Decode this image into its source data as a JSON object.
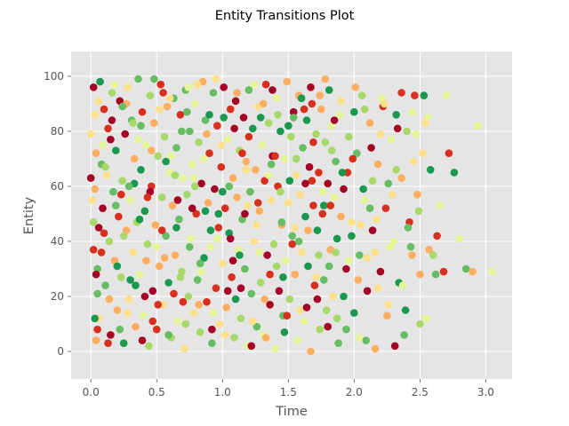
{
  "chart_data": {
    "type": "scatter",
    "title": "Entity Transitions Plot",
    "xlabel": "Time",
    "ylabel": "Entity",
    "xlim": [
      -0.15,
      3.2
    ],
    "ylim": [
      -10,
      109
    ],
    "xticks": [
      0.0,
      0.5,
      1.0,
      1.5,
      2.0,
      2.5,
      3.0
    ],
    "xtick_labels": [
      "0.0",
      "0.5",
      "1.0",
      "1.5",
      "2.0",
      "2.5",
      "3.0"
    ],
    "yticks": [
      0,
      20,
      40,
      60,
      80,
      100
    ],
    "ytick_labels": [
      "0",
      "20",
      "40",
      "60",
      "80",
      "100"
    ],
    "grid": true,
    "style": "ggplot",
    "colors": [
      "#a50026",
      "#d7301f",
      "#fdae61",
      "#fee08b",
      "#e6f598",
      "#a6d96a",
      "#66bd63",
      "#1a9850"
    ],
    "background_color": "#e5e5e5",
    "points": [
      [
        0.02,
        96
      ],
      [
        0.03,
        86
      ],
      [
        0.04,
        72
      ],
      [
        0.03,
        59
      ],
      [
        0.02,
        37
      ],
      [
        0.05,
        21
      ],
      [
        0.04,
        4
      ],
      [
        0.06,
        45
      ],
      [
        0.05,
        30
      ],
      [
        0.07,
        98
      ],
      [
        0.08,
        68
      ],
      [
        0.06,
        12
      ],
      [
        0.09,
        52
      ],
      [
        0.1,
        88
      ],
      [
        0.11,
        24
      ],
      [
        0.12,
        64
      ],
      [
        0.13,
        81
      ],
      [
        0.14,
        40
      ],
      [
        0.15,
        6
      ],
      [
        0.16,
        94
      ],
      [
        0.17,
        58
      ],
      [
        0.18,
        33
      ],
      [
        0.19,
        73
      ],
      [
        0.2,
        15
      ],
      [
        0.21,
        49
      ],
      [
        0.22,
        91
      ],
      [
        0.23,
        27
      ],
      [
        0.24,
        62
      ],
      [
        0.25,
        3
      ],
      [
        0.26,
        79
      ],
      [
        0.27,
        44
      ],
      [
        0.28,
        96
      ],
      [
        0.29,
        19
      ],
      [
        0.3,
        55
      ],
      [
        0.31,
        84
      ],
      [
        0.32,
        36
      ],
      [
        0.33,
        70
      ],
      [
        0.34,
        9
      ],
      [
        0.35,
        47
      ],
      [
        0.36,
        99
      ],
      [
        0.37,
        28
      ],
      [
        0.38,
        66
      ],
      [
        0.39,
        87
      ],
      [
        0.4,
        13
      ],
      [
        0.41,
        51
      ],
      [
        0.42,
        75
      ],
      [
        0.43,
        39
      ],
      [
        0.44,
        2
      ],
      [
        0.45,
        93
      ],
      [
        0.46,
        60
      ],
      [
        0.47,
        22
      ],
      [
        0.48,
        83
      ],
      [
        0.49,
        46
      ],
      [
        0.5,
        8
      ],
      [
        0.51,
        71
      ],
      [
        0.52,
        31
      ],
      [
        0.53,
        97
      ],
      [
        0.54,
        56
      ],
      [
        0.55,
        17
      ],
      [
        0.56,
        78
      ],
      [
        0.57,
        42
      ],
      [
        0.58,
        89
      ],
      [
        0.59,
        25
      ],
      [
        0.6,
        65
      ],
      [
        0.61,
        5
      ],
      [
        0.62,
        53
      ],
      [
        0.63,
        92
      ],
      [
        0.64,
        35
      ],
      [
        0.65,
        74
      ],
      [
        0.66,
        11
      ],
      [
        0.67,
        48
      ],
      [
        0.68,
        86
      ],
      [
        0.69,
        29
      ],
      [
        0.7,
        63
      ],
      [
        0.71,
        1
      ],
      [
        0.72,
        95
      ],
      [
        0.73,
        57
      ],
      [
        0.74,
        20
      ],
      [
        0.75,
        80
      ],
      [
        0.76,
        41
      ],
      [
        0.77,
        68
      ],
      [
        0.78,
        14
      ],
      [
        0.79,
        90
      ],
      [
        0.8,
        50
      ],
      [
        0.81,
        26
      ],
      [
        0.82,
        76
      ],
      [
        0.83,
        7
      ],
      [
        0.84,
        61
      ],
      [
        0.85,
        98
      ],
      [
        0.86,
        34
      ],
      [
        0.87,
        84
      ],
      [
        0.88,
        18
      ],
      [
        0.89,
        54
      ],
      [
        0.9,
        72
      ],
      [
        0.91,
        38
      ],
      [
        0.92,
        3
      ],
      [
        0.93,
        94
      ],
      [
        0.94,
        59
      ],
      [
        0.95,
        23
      ],
      [
        0.96,
        82
      ],
      [
        0.97,
        45
      ],
      [
        0.98,
        10
      ],
      [
        0.99,
        67
      ],
      [
        1.0,
        32
      ],
      [
        1.01,
        96
      ],
      [
        1.02,
        52
      ],
      [
        1.03,
        16
      ],
      [
        1.04,
        77
      ],
      [
        1.05,
        43
      ],
      [
        1.06,
        88
      ],
      [
        1.07,
        27
      ],
      [
        1.08,
        63
      ],
      [
        1.09,
        5
      ],
      [
        1.1,
        91
      ],
      [
        1.11,
        56
      ],
      [
        1.12,
        37
      ],
      [
        1.13,
        73
      ],
      [
        1.14,
        12
      ],
      [
        1.15,
        48
      ],
      [
        1.16,
        85
      ],
      [
        1.17,
        30
      ],
      [
        1.18,
        69
      ],
      [
        1.19,
        2
      ],
      [
        1.2,
        95
      ],
      [
        1.21,
        58
      ],
      [
        1.22,
        21
      ],
      [
        1.23,
        81
      ],
      [
        1.24,
        40
      ],
      [
        1.25,
        66
      ],
      [
        1.26,
        9
      ],
      [
        1.27,
        89
      ],
      [
        1.28,
        51
      ],
      [
        1.29,
        25
      ],
      [
        1.3,
        75
      ],
      [
        1.31,
        6
      ],
      [
        1.32,
        62
      ],
      [
        1.33,
        97
      ],
      [
        1.34,
        35
      ],
      [
        1.35,
        83
      ],
      [
        1.36,
        17
      ],
      [
        1.37,
        55
      ],
      [
        1.38,
        71
      ],
      [
        1.39,
        39
      ],
      [
        1.4,
        1
      ],
      [
        1.41,
        92
      ],
      [
        1.42,
        60
      ],
      [
        1.43,
        22
      ],
      [
        1.44,
        80
      ],
      [
        1.45,
        46
      ],
      [
        1.46,
        13
      ],
      [
        1.47,
        70
      ],
      [
        1.48,
        33
      ],
      [
        1.49,
        98
      ],
      [
        1.5,
        54
      ],
      [
        1.51,
        19
      ],
      [
        1.52,
        78
      ],
      [
        1.53,
        42
      ],
      [
        1.54,
        87
      ],
      [
        1.55,
        28
      ],
      [
        1.56,
        64
      ],
      [
        1.57,
        4
      ],
      [
        1.58,
        93
      ],
      [
        1.59,
        57
      ],
      [
        1.6,
        36
      ],
      [
        1.61,
        74
      ],
      [
        1.62,
        11
      ],
      [
        1.63,
        49
      ],
      [
        1.64,
        84
      ],
      [
        1.65,
        31
      ],
      [
        1.66,
        67
      ],
      [
        1.67,
        0
      ],
      [
        1.68,
        90
      ],
      [
        1.69,
        53
      ],
      [
        1.7,
        24
      ],
      [
        1.71,
        79
      ],
      [
        1.72,
        44
      ],
      [
        1.73,
        65
      ],
      [
        1.74,
        8
      ],
      [
        1.75,
        88
      ],
      [
        1.76,
        50
      ],
      [
        1.77,
        26
      ],
      [
        1.78,
        76
      ],
      [
        1.79,
        15
      ],
      [
        1.8,
        61
      ],
      [
        1.81,
        95
      ],
      [
        1.82,
        37
      ],
      [
        1.83,
        82
      ],
      [
        1.84,
        20
      ],
      [
        1.85,
        56
      ],
      [
        1.86,
        69
      ],
      [
        1.87,
        41
      ],
      [
        1.88,
        3
      ],
      [
        1.9,
        91
      ],
      [
        1.92,
        59
      ],
      [
        1.94,
        30
      ],
      [
        1.96,
        78
      ],
      [
        1.98,
        47
      ],
      [
        2.0,
        14
      ],
      [
        2.02,
        72
      ],
      [
        2.04,
        35
      ],
      [
        2.06,
        93
      ],
      [
        2.08,
        55
      ],
      [
        2.1,
        22
      ],
      [
        2.12,
        83
      ],
      [
        2.14,
        44
      ],
      [
        2.16,
        1
      ],
      [
        2.18,
        68
      ],
      [
        2.2,
        29
      ],
      [
        2.22,
        89
      ],
      [
        2.24,
        52
      ],
      [
        2.26,
        17
      ],
      [
        2.28,
        77
      ],
      [
        2.3,
        40
      ],
      [
        2.32,
        86
      ],
      [
        2.34,
        25
      ],
      [
        2.36,
        63
      ],
      [
        2.38,
        6
      ],
      [
        2.4,
        80
      ],
      [
        2.42,
        47
      ],
      [
        2.44,
        35
      ],
      [
        2.46,
        93
      ],
      [
        2.48,
        57
      ],
      [
        2.5,
        28
      ],
      [
        2.52,
        72
      ],
      [
        2.55,
        12
      ],
      [
        2.58,
        66
      ],
      [
        2.6,
        35
      ],
      [
        2.65,
        53
      ],
      [
        2.68,
        29
      ],
      [
        2.72,
        72
      ],
      [
        2.76,
        65
      ],
      [
        2.8,
        41
      ],
      [
        2.85,
        30
      ],
      [
        2.9,
        29
      ],
      [
        2.94,
        82
      ],
      [
        3.05,
        29
      ],
      [
        0.0,
        79
      ],
      [
        0.0,
        63
      ],
      [
        0.02,
        47
      ],
      [
        0.03,
        12
      ],
      [
        0.06,
        91
      ],
      [
        0.08,
        36
      ],
      [
        0.11,
        67
      ],
      [
        0.14,
        19
      ],
      [
        0.16,
        84
      ],
      [
        0.19,
        53
      ],
      [
        0.22,
        8
      ],
      [
        0.25,
        42
      ],
      [
        0.27,
        90
      ],
      [
        0.3,
        26
      ],
      [
        0.33,
        61
      ],
      [
        0.36,
        77
      ],
      [
        0.39,
        4
      ],
      [
        0.42,
        33
      ],
      [
        0.45,
        58
      ],
      [
        0.48,
        99
      ],
      [
        0.51,
        17
      ],
      [
        0.54,
        44
      ],
      [
        0.57,
        69
      ],
      [
        0.6,
        92
      ],
      [
        0.63,
        21
      ],
      [
        0.66,
        55
      ],
      [
        0.69,
        80
      ],
      [
        0.72,
        10
      ],
      [
        0.75,
        38
      ],
      [
        0.78,
        63
      ],
      [
        0.81,
        97
      ],
      [
        0.84,
        29
      ],
      [
        0.87,
        51
      ],
      [
        0.9,
        86
      ],
      [
        0.93,
        14
      ],
      [
        0.96,
        41
      ],
      [
        0.99,
        75
      ],
      [
        1.02,
        6
      ],
      [
        1.05,
        60
      ],
      [
        1.08,
        33
      ],
      [
        1.11,
        94
      ],
      [
        1.14,
        23
      ],
      [
        1.17,
        50
      ],
      [
        1.2,
        78
      ],
      [
        1.23,
        11
      ],
      [
        1.26,
        46
      ],
      [
        1.29,
        85
      ],
      [
        1.32,
        19
      ],
      [
        1.35,
        64
      ],
      [
        1.38,
        95
      ],
      [
        1.41,
        31
      ],
      [
        1.44,
        58
      ],
      [
        1.47,
        7
      ],
      [
        1.5,
        82
      ],
      [
        1.53,
        39
      ],
      [
        1.56,
        70
      ],
      [
        1.59,
        15
      ],
      [
        1.62,
        88
      ],
      [
        1.65,
        44
      ],
      [
        1.68,
        62
      ],
      [
        1.71,
        27
      ],
      [
        1.74,
        93
      ],
      [
        1.77,
        53
      ],
      [
        1.8,
        9
      ],
      [
        1.83,
        73
      ],
      [
        1.86,
        36
      ],
      [
        1.89,
        86
      ],
      [
        1.92,
        20
      ],
      [
        1.95,
        65
      ],
      [
        1.98,
        42
      ],
      [
        2.01,
        96
      ],
      [
        2.04,
        5
      ],
      [
        2.07,
        59
      ],
      [
        2.1,
        34
      ],
      [
        2.13,
        74
      ],
      [
        2.17,
        48
      ],
      [
        2.21,
        92
      ],
      [
        2.25,
        13
      ],
      [
        2.29,
        57
      ],
      [
        2.33,
        81
      ],
      [
        2.37,
        24
      ],
      [
        2.41,
        45
      ],
      [
        2.45,
        69
      ],
      [
        2.5,
        10
      ],
      [
        2.54,
        83
      ],
      [
        2.57,
        37
      ],
      [
        2.62,
        28
      ],
      [
        2.7,
        93
      ],
      [
        0.04,
        28
      ],
      [
        0.09,
        75
      ],
      [
        0.13,
        3
      ],
      [
        0.18,
        97
      ],
      [
        0.23,
        57
      ],
      [
        0.28,
        14
      ],
      [
        0.32,
        83
      ],
      [
        0.37,
        48
      ],
      [
        0.41,
        20
      ],
      [
        0.46,
        73
      ],
      [
        0.5,
        38
      ],
      [
        0.55,
        94
      ],
      [
        0.59,
        6
      ],
      [
        0.64,
        64
      ],
      [
        0.68,
        27
      ],
      [
        0.73,
        87
      ],
      [
        0.77,
        52
      ],
      [
        0.82,
        17
      ],
      [
        0.86,
        70
      ],
      [
        0.91,
        44
      ],
      [
        0.95,
        99
      ],
      [
        1.0,
        58
      ],
      [
        1.04,
        22
      ],
      [
        1.09,
        81
      ],
      [
        1.13,
        35
      ],
      [
        1.18,
        66
      ],
      [
        1.22,
        2
      ],
      [
        1.27,
        54
      ],
      [
        1.31,
        90
      ],
      [
        1.36,
        28
      ],
      [
        1.4,
        71
      ],
      [
        1.45,
        47
      ],
      [
        1.49,
        13
      ],
      [
        1.54,
        85
      ],
      [
        1.58,
        40
      ],
      [
        1.63,
        61
      ],
      [
        1.67,
        96
      ],
      [
        1.72,
        19
      ],
      [
        1.76,
        58
      ],
      [
        1.81,
        31
      ],
      [
        1.85,
        84
      ],
      [
        1.9,
        49
      ],
      [
        1.94,
        8
      ],
      [
        1.99,
        70
      ],
      [
        2.03,
        26
      ],
      [
        2.08,
        88
      ],
      [
        2.12,
        52
      ],
      [
        2.16,
        36
      ],
      [
        2.2,
        79
      ],
      [
        2.26,
        61
      ],
      [
        2.31,
        2
      ],
      [
        2.36,
        94
      ],
      [
        2.43,
        38
      ],
      [
        2.47,
        79
      ],
      [
        2.53,
        93
      ],
      [
        2.63,
        42
      ],
      [
        0.01,
        55
      ],
      [
        0.05,
        8
      ],
      [
        0.1,
        43
      ],
      [
        0.15,
        77
      ],
      [
        0.2,
        31
      ],
      [
        0.24,
        89
      ],
      [
        0.29,
        60
      ],
      [
        0.34,
        24
      ],
      [
        0.38,
        82
      ],
      [
        0.43,
        56
      ],
      [
        0.47,
        11
      ],
      [
        0.52,
        88
      ],
      [
        0.56,
        34
      ],
      [
        0.61,
        71
      ],
      [
        0.65,
        45
      ],
      [
        0.7,
        18
      ],
      [
        0.74,
        96
      ],
      [
        0.79,
        60
      ],
      [
        0.83,
        32
      ],
      [
        0.88,
        79
      ],
      [
        0.92,
        8
      ],
      [
        0.97,
        50
      ],
      [
        1.01,
        85
      ],
      [
        1.06,
        41
      ],
      [
        1.1,
        19
      ],
      [
        1.15,
        72
      ],
      [
        1.19,
        53
      ],
      [
        1.24,
        97
      ],
      [
        1.28,
        36
      ],
      [
        1.33,
        5
      ],
      [
        1.37,
        68
      ],
      [
        1.42,
        86
      ],
      [
        1.46,
        27
      ],
      [
        1.51,
        62
      ],
      [
        1.55,
        45
      ],
      [
        1.6,
        92
      ],
      [
        1.64,
        16
      ],
      [
        1.69,
        76
      ],
      [
        1.73,
        35
      ],
      [
        1.78,
        99
      ],
      [
        1.82,
        53
      ],
      [
        1.87,
        12
      ],
      [
        1.91,
        65
      ],
      [
        1.96,
        33
      ],
      [
        2.0,
        87
      ],
      [
        2.05,
        46
      ],
      [
        2.09,
        4
      ],
      [
        2.14,
        62
      ],
      [
        2.18,
        23
      ],
      [
        2.23,
        90
      ],
      [
        2.27,
        38
      ],
      [
        2.32,
        66
      ],
      [
        2.39,
        15
      ],
      [
        2.44,
        87
      ],
      [
        2.49,
        51
      ],
      [
        2.56,
        85
      ]
    ]
  }
}
